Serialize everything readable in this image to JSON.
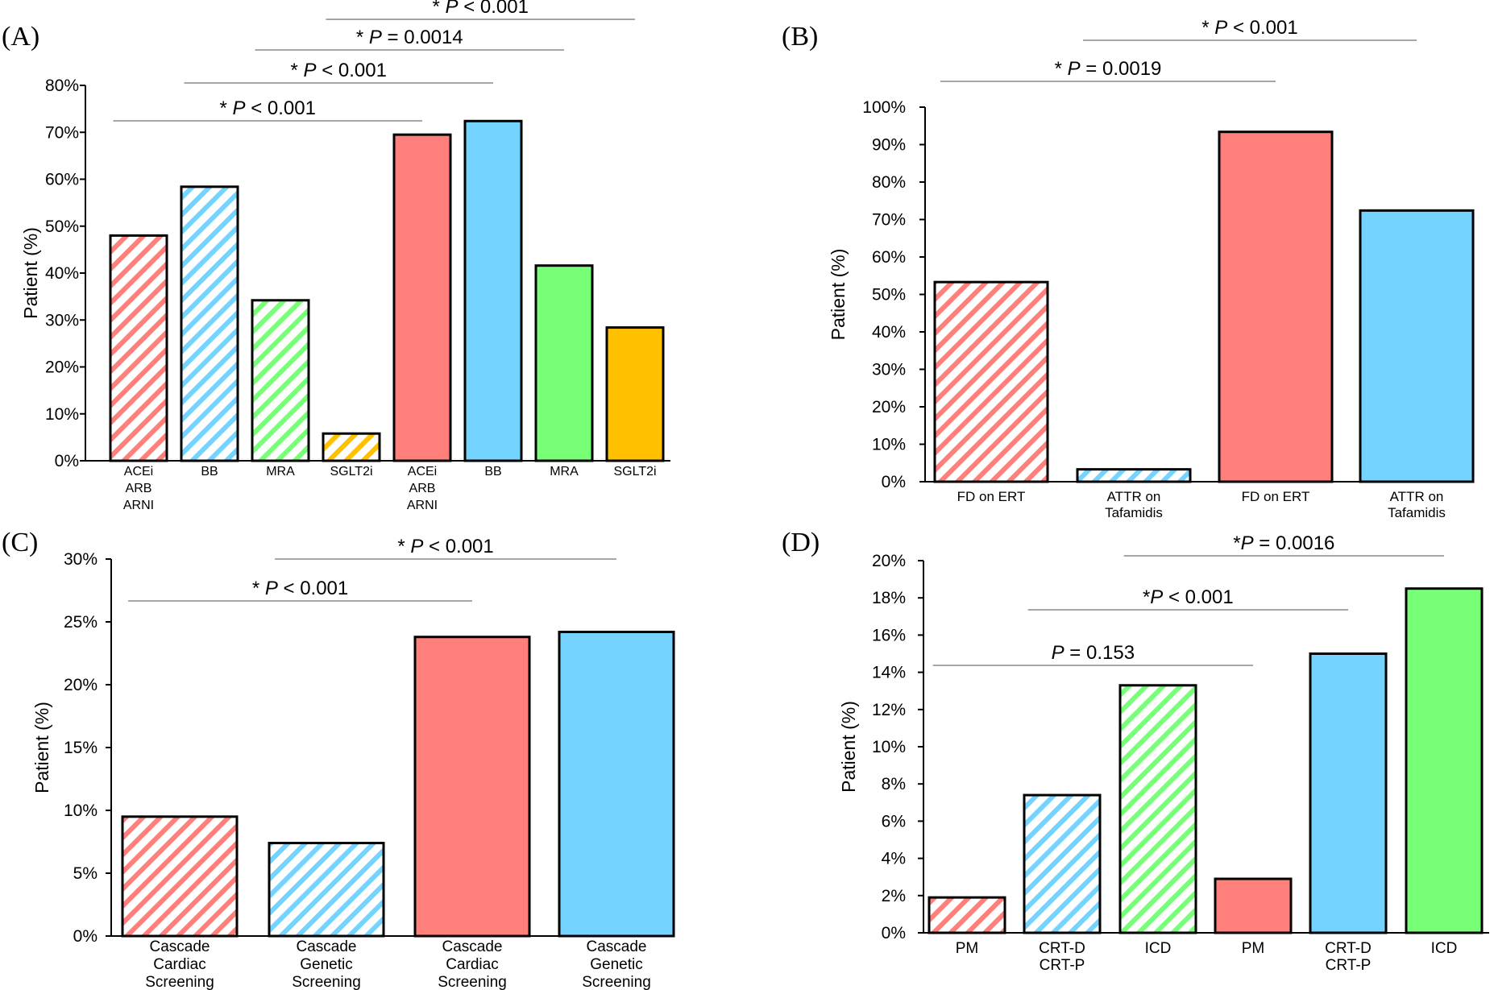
{
  "colors": {
    "red": "#FF7F7B",
    "blue": "#74D3FF",
    "green": "#78FF78",
    "yellow": "#FFC000",
    "axis": "#000000",
    "sig_line": "#888888"
  },
  "chart_data": [
    {
      "panel": "(A)",
      "type": "bar",
      "ylabel": "Patient (%)",
      "ylim": [
        0,
        80
      ],
      "yticks": [
        0,
        10,
        20,
        30,
        40,
        50,
        60,
        70,
        80
      ],
      "ytick_labels": [
        "0%",
        "10%",
        "20%",
        "30%",
        "40%",
        "50%",
        "60%",
        "70%",
        "80%"
      ],
      "grid": false,
      "categories": [
        [
          "ACEi",
          "ARB",
          "ARNI"
        ],
        [
          "BB"
        ],
        [
          "MRA"
        ],
        [
          "SGLT2i"
        ],
        [
          "ACEi",
          "ARB",
          "ARNI"
        ],
        [
          "BB"
        ],
        [
          "MRA"
        ],
        [
          "SGLT2i"
        ]
      ],
      "values": [
        48,
        58.4,
        34.2,
        5.8,
        69.5,
        72.4,
        41.6,
        28.4
      ],
      "bar_colors": [
        "red",
        "blue",
        "green",
        "yellow",
        "red",
        "blue",
        "green",
        "yellow"
      ],
      "hatched": [
        true,
        true,
        true,
        true,
        false,
        false,
        false,
        false
      ],
      "comparisons": [
        {
          "pair": [
            0,
            4
          ],
          "star": "*",
          "p": "P",
          "rest": " < 0.001"
        },
        {
          "pair": [
            1,
            5
          ],
          "star": "*",
          "p": "P",
          "rest": " < 0.001"
        },
        {
          "pair": [
            2,
            6
          ],
          "star": "*",
          "p": "P",
          "rest": " = 0.0014"
        },
        {
          "pair": [
            3,
            7
          ],
          "star": "*",
          "p": "P",
          "rest": " < 0.001"
        }
      ]
    },
    {
      "panel": "(B)",
      "type": "bar",
      "ylabel": "Patient (%)",
      "ylim": [
        0,
        100
      ],
      "yticks": [
        0,
        10,
        20,
        30,
        40,
        50,
        60,
        70,
        80,
        90,
        100
      ],
      "ytick_labels": [
        "0%",
        "10%",
        "20%",
        "30%",
        "40%",
        "50%",
        "60%",
        "70%",
        "80%",
        "90%",
        "100%"
      ],
      "grid": false,
      "categories": [
        [
          "FD on ERT"
        ],
        [
          "ATTR on",
          "Tafamidis"
        ],
        [
          "FD on ERT"
        ],
        [
          "ATTR on",
          "Tafamidis"
        ]
      ],
      "values": [
        53.3,
        3.3,
        93.4,
        72.4
      ],
      "bar_colors": [
        "red",
        "blue",
        "red",
        "blue"
      ],
      "hatched": [
        true,
        true,
        false,
        false
      ],
      "comparisons": [
        {
          "pair": [
            0,
            2
          ],
          "star": "*",
          "p": "P",
          "rest": " = 0.0019"
        },
        {
          "pair": [
            1,
            3
          ],
          "star": "*",
          "p": "P",
          "rest": " < 0.001"
        }
      ]
    },
    {
      "panel": "(C)",
      "type": "bar",
      "ylabel": "Patient (%)",
      "ylim": [
        0,
        30
      ],
      "yticks": [
        0,
        5,
        10,
        15,
        20,
        25,
        30
      ],
      "ytick_labels": [
        "0%",
        "5%",
        "10%",
        "15%",
        "20%",
        "25%",
        "30%"
      ],
      "grid": false,
      "categories": [
        [
          "Cascade",
          "Cardiac",
          "Screening"
        ],
        [
          "Cascade",
          "Genetic",
          "Screening"
        ],
        [
          "Cascade",
          "Cardiac",
          "Screening"
        ],
        [
          "Cascade",
          "Genetic",
          "Screening"
        ]
      ],
      "values": [
        9.5,
        7.4,
        23.8,
        24.2
      ],
      "bar_colors": [
        "red",
        "blue",
        "red",
        "blue"
      ],
      "hatched": [
        true,
        true,
        false,
        false
      ],
      "comparisons": [
        {
          "pair": [
            0,
            2
          ],
          "star": "*",
          "p": "P",
          "rest": " < 0.001"
        },
        {
          "pair": [
            1,
            3
          ],
          "star": "*",
          "p": "P",
          "rest": " < 0.001"
        }
      ]
    },
    {
      "panel": "(D)",
      "type": "bar",
      "ylabel": "Patient (%)",
      "ylim": [
        0,
        20
      ],
      "yticks": [
        0,
        2,
        4,
        6,
        8,
        10,
        12,
        14,
        16,
        18,
        20
      ],
      "ytick_labels": [
        "0%",
        "2%",
        "4%",
        "6%",
        "8%",
        "10%",
        "12%",
        "14%",
        "16%",
        "18%",
        "20%"
      ],
      "grid": false,
      "categories": [
        [
          "PM"
        ],
        [
          "CRT-D",
          "CRT-P"
        ],
        [
          "ICD"
        ],
        [
          "PM"
        ],
        [
          "CRT-D",
          "CRT-P"
        ],
        [
          "ICD"
        ]
      ],
      "values": [
        1.9,
        7.4,
        13.3,
        2.9,
        15.0,
        18.5
      ],
      "bar_colors": [
        "red",
        "blue",
        "green",
        "red",
        "blue",
        "green"
      ],
      "hatched": [
        true,
        true,
        true,
        false,
        false,
        false
      ],
      "comparisons": [
        {
          "pair": [
            0,
            3
          ],
          "star": "",
          "p": "P",
          "rest": " = 0.153"
        },
        {
          "pair": [
            1,
            4
          ],
          "star": "*",
          "p": "P",
          "rest": " < 0.001"
        },
        {
          "pair": [
            2,
            5
          ],
          "star": "*",
          "p": "P",
          "rest": " = 0.0016"
        }
      ]
    }
  ]
}
